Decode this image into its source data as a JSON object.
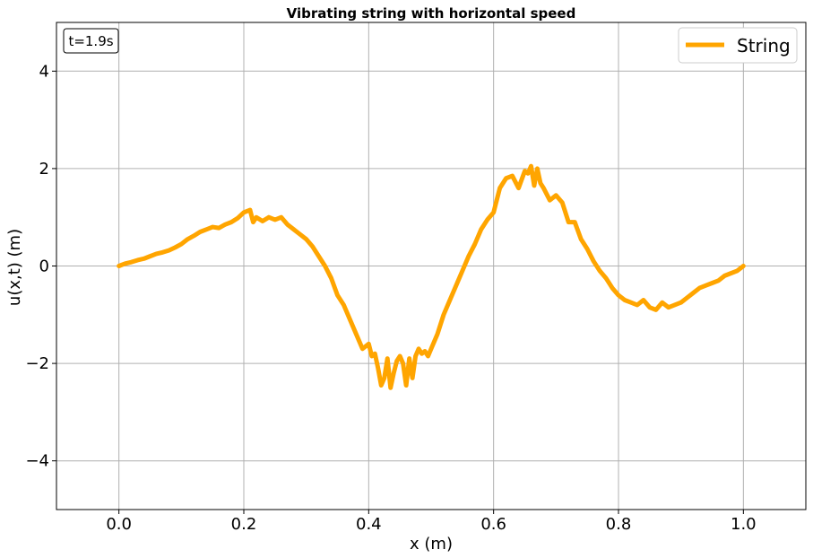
{
  "chart_data": {
    "type": "line",
    "title": "Vibrating string with horizontal speed",
    "xlabel": "x (m)",
    "ylabel": "u(x,t) (m)",
    "xlim": [
      -0.1,
      1.1
    ],
    "ylim": [
      -5,
      5
    ],
    "xticks": [
      0.0,
      0.2,
      0.4,
      0.6,
      0.8,
      1.0
    ],
    "xtick_labels": [
      "0.0",
      "0.2",
      "0.4",
      "0.6",
      "0.8",
      "1.0"
    ],
    "yticks": [
      -4,
      -2,
      0,
      2,
      4
    ],
    "ytick_labels": [
      "−4",
      "−2",
      "0",
      "2",
      "4"
    ],
    "grid": true,
    "legend_position": "top-right",
    "annotation": "t=1.9s",
    "series": [
      {
        "name": "String",
        "color": "#FFA500",
        "x": [
          0.0,
          0.01,
          0.02,
          0.03,
          0.04,
          0.05,
          0.06,
          0.07,
          0.08,
          0.09,
          0.1,
          0.11,
          0.12,
          0.13,
          0.14,
          0.15,
          0.16,
          0.17,
          0.18,
          0.19,
          0.2,
          0.21,
          0.215,
          0.22,
          0.23,
          0.24,
          0.25,
          0.26,
          0.27,
          0.28,
          0.29,
          0.3,
          0.31,
          0.32,
          0.33,
          0.34,
          0.35,
          0.36,
          0.37,
          0.38,
          0.39,
          0.4,
          0.405,
          0.41,
          0.415,
          0.42,
          0.425,
          0.43,
          0.435,
          0.44,
          0.445,
          0.45,
          0.455,
          0.46,
          0.465,
          0.47,
          0.475,
          0.48,
          0.485,
          0.49,
          0.495,
          0.5,
          0.51,
          0.52,
          0.53,
          0.54,
          0.55,
          0.56,
          0.57,
          0.58,
          0.59,
          0.6,
          0.61,
          0.62,
          0.63,
          0.64,
          0.65,
          0.655,
          0.66,
          0.665,
          0.67,
          0.675,
          0.68,
          0.69,
          0.7,
          0.71,
          0.72,
          0.73,
          0.74,
          0.75,
          0.76,
          0.77,
          0.78,
          0.79,
          0.8,
          0.81,
          0.82,
          0.83,
          0.84,
          0.85,
          0.86,
          0.87,
          0.88,
          0.89,
          0.9,
          0.91,
          0.92,
          0.93,
          0.94,
          0.95,
          0.96,
          0.97,
          0.98,
          0.99,
          1.0
        ],
        "y": [
          0.0,
          0.05,
          0.08,
          0.12,
          0.15,
          0.2,
          0.25,
          0.28,
          0.32,
          0.38,
          0.45,
          0.55,
          0.62,
          0.7,
          0.75,
          0.8,
          0.78,
          0.85,
          0.9,
          0.98,
          1.1,
          1.15,
          0.9,
          1.0,
          0.92,
          1.0,
          0.95,
          1.0,
          0.85,
          0.75,
          0.65,
          0.55,
          0.4,
          0.2,
          0.0,
          -0.25,
          -0.6,
          -0.8,
          -1.1,
          -1.4,
          -1.7,
          -1.6,
          -1.85,
          -1.8,
          -2.1,
          -2.45,
          -2.3,
          -1.9,
          -2.5,
          -2.2,
          -1.95,
          -1.85,
          -2.0,
          -2.45,
          -1.9,
          -2.3,
          -1.85,
          -1.7,
          -1.8,
          -1.75,
          -1.85,
          -1.7,
          -1.4,
          -1.0,
          -0.7,
          -0.4,
          -0.1,
          0.2,
          0.45,
          0.75,
          0.95,
          1.1,
          1.6,
          1.8,
          1.85,
          1.6,
          1.95,
          1.9,
          2.05,
          1.65,
          2.0,
          1.7,
          1.6,
          1.35,
          1.45,
          1.3,
          0.9,
          0.9,
          0.55,
          0.35,
          0.1,
          -0.1,
          -0.25,
          -0.45,
          -0.6,
          -0.7,
          -0.75,
          -0.8,
          -0.7,
          -0.85,
          -0.9,
          -0.75,
          -0.85,
          -0.8,
          -0.75,
          -0.65,
          -0.55,
          -0.45,
          -0.4,
          -0.35,
          -0.3,
          -0.2,
          -0.15,
          -0.1,
          0.0
        ]
      }
    ]
  }
}
